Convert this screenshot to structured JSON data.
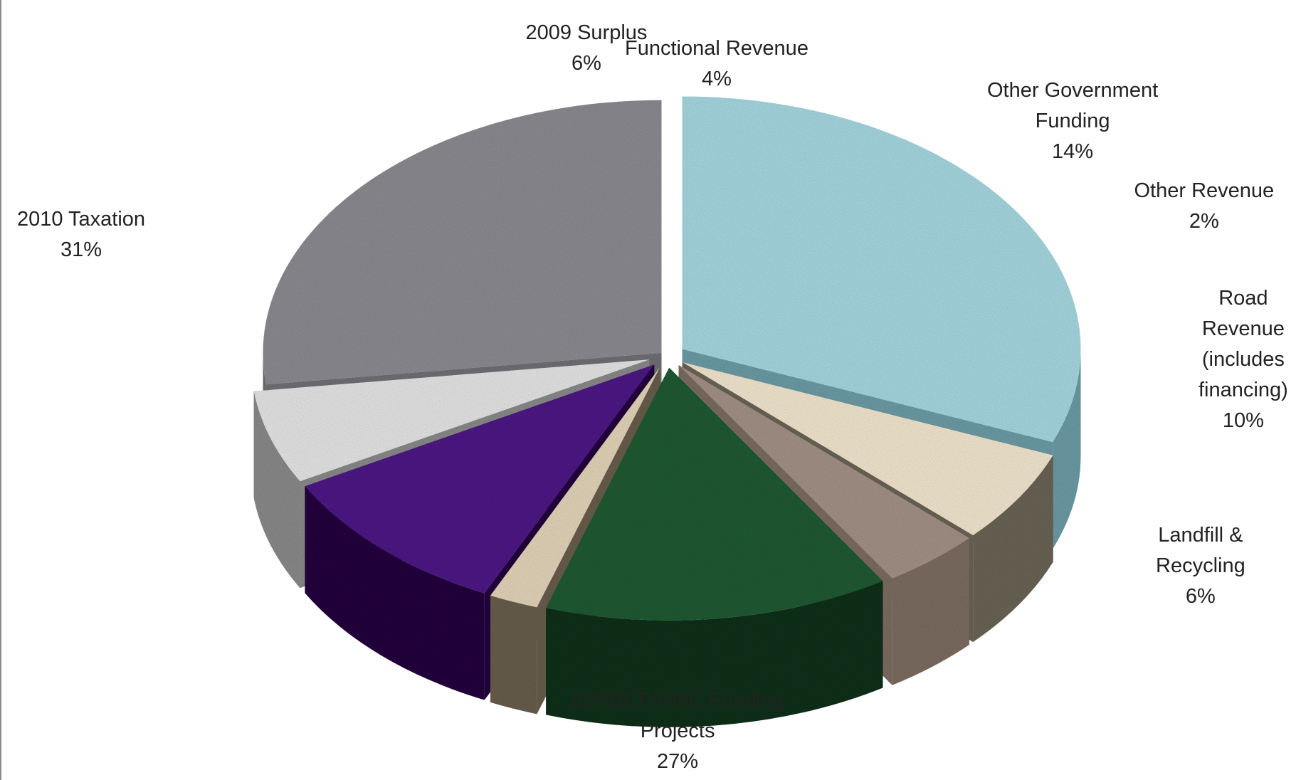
{
  "chart_data": {
    "type": "pie",
    "style": "3d-exploded",
    "legend": "none",
    "slices": [
      {
        "name": "2010 Taxation",
        "label_lines": [
          "2010 Taxation"
        ],
        "value_label": "31%",
        "value": 31,
        "color": "#a9dbe5",
        "side_color": "#6e9ea8"
      },
      {
        "name": "2009 Surplus",
        "label_lines": [
          "2009 Surplus"
        ],
        "value_label": "6%",
        "value": 6,
        "color": "#f6ead2",
        "side_color": "#6c6557"
      },
      {
        "name": "Functional Revenue",
        "label_lines": [
          "Functional Revenue"
        ],
        "value_label": "4%",
        "value": 4,
        "color": "#a69488",
        "side_color": "#7e6e63"
      },
      {
        "name": "Other Government Funding",
        "label_lines": [
          "Other Government",
          "Funding"
        ],
        "value_label": "14%",
        "value": 14,
        "color": "#1f5c34",
        "side_color": "#0f3119"
      },
      {
        "name": "Other Revenue",
        "label_lines": [
          "Other Revenue"
        ],
        "value_label": "2%",
        "value": 2,
        "color": "#e7d8bd",
        "side_color": "#6a5f4e"
      },
      {
        "name": "Road Revenue (includes financing)",
        "label_lines": [
          "Road",
          "Revenue",
          "(includes",
          "financing)"
        ],
        "value_label": "10%",
        "value": 10,
        "color": "#4e1687",
        "side_color": "#24063e"
      },
      {
        "name": "Landfill & Recycling",
        "label_lines": [
          "Landfill &",
          "Recycling"
        ],
        "value_label": "6%",
        "value": 6,
        "color": "#e9e9e9",
        "side_color": "#8c8c8c"
      },
      {
        "name": "ISF/BCF/RInC Funding Projects",
        "label_lines": [
          "ISF/BCF/RInC Funding",
          "Projects"
        ],
        "value_label": "27%",
        "value": 27,
        "color": "#8d8d93",
        "side_color": "#717177"
      }
    ]
  }
}
